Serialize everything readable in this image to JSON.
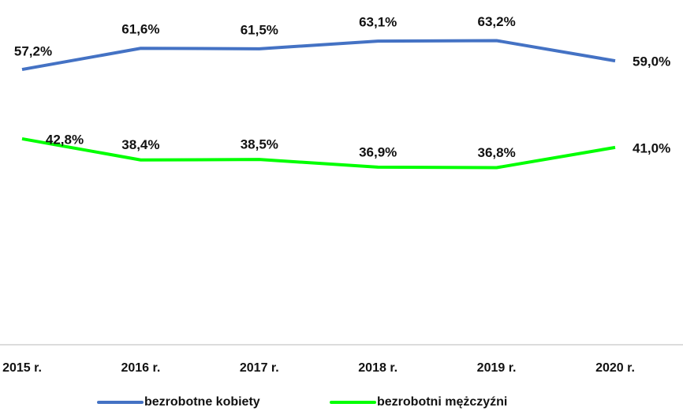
{
  "chart_data": {
    "type": "line",
    "categories": [
      "2015 r.",
      "2016 r.",
      "2017 r.",
      "2018 r.",
      "2019 r.",
      "2020 r."
    ],
    "series": [
      {
        "name": "bezrobotne kobiety",
        "color": "#4472c4",
        "values": [
          57.2,
          61.6,
          61.5,
          63.1,
          63.2,
          59.0
        ],
        "value_labels": [
          "57,2%",
          "61,6%",
          "61,5%",
          "63,1%",
          "63,2%",
          "59,0%"
        ]
      },
      {
        "name": "bezrobotni mężczyźni",
        "color": "#00ff00",
        "values": [
          42.8,
          38.4,
          38.5,
          36.9,
          36.8,
          41.0
        ],
        "value_labels": [
          "42,8%",
          "38,4%",
          "38,5%",
          "36,9%",
          "36,8%",
          "41,0%"
        ]
      }
    ],
    "ylim": [
      0,
      70
    ],
    "legend": "bottom"
  }
}
